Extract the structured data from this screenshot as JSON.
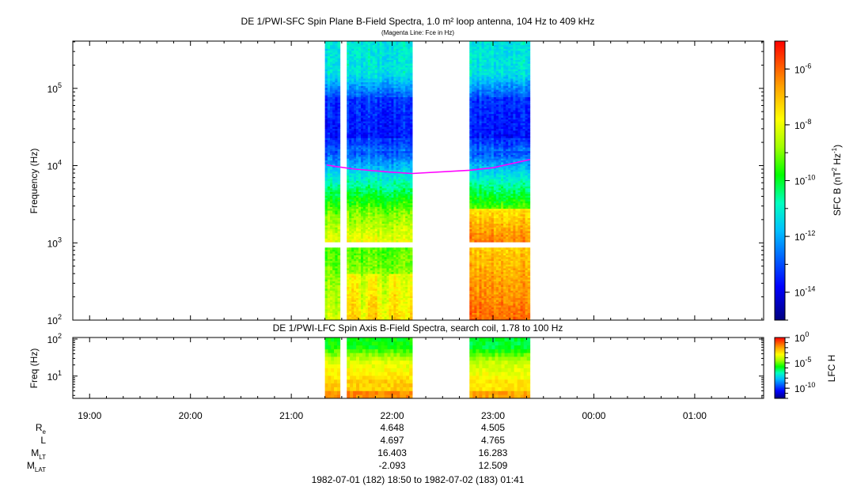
{
  "chart_data": [
    {
      "type": "heatmap",
      "title": "DE 1/PWI-SFC  Spin Plane B-Field Spectra, 1.0 m² loop antenna, 104 Hz to 409 kHz",
      "subtitle": "(Magenta Line: Fce in Hz)",
      "ylabel": "Frequency (Hz)",
      "y_scale": "log",
      "ylim": [
        100,
        409000
      ],
      "y_ticks": [
        {
          "value": 100,
          "base": "10",
          "exp": "2"
        },
        {
          "value": 1000,
          "base": "10",
          "exp": "3"
        },
        {
          "value": 10000,
          "base": "10",
          "exp": "4"
        },
        {
          "value": 100000,
          "base": "10",
          "exp": "5"
        }
      ],
      "colorbar": {
        "label_main": "SFC B (nT",
        "label_sup1": "2",
        "label_mid": " Hz",
        "label_sup2": "-1",
        "label_end": ")",
        "scale": "log",
        "range": [
          "1e-15",
          "1e-5"
        ],
        "ticks": [
          {
            "exp": "-6",
            "value": 1e-06
          },
          {
            "exp": "-8",
            "value": 1e-08
          },
          {
            "exp": "-10",
            "value": 1e-10
          },
          {
            "exp": "-12",
            "value": 1e-12
          },
          {
            "exp": "-14",
            "value": 1e-14
          }
        ]
      },
      "data_intervals": [
        {
          "start": "21:20",
          "end": "21:29"
        },
        {
          "start": "21:33",
          "end": "22:12"
        },
        {
          "start": "22:46",
          "end": "23:22"
        }
      ],
      "data_gap_freq_hz": [
        850,
        1000
      ],
      "fce_line": {
        "color": "#ff00ff",
        "points": [
          {
            "t": "21:21",
            "hz": 10200
          },
          {
            "t": "21:27",
            "hz": 9700
          },
          {
            "t": "21:38",
            "hz": 9000
          },
          {
            "t": "22:00",
            "hz": 8200
          },
          {
            "t": "22:12",
            "hz": 7900
          },
          {
            "t": "22:46",
            "hz": 8700
          },
          {
            "t": "23:00",
            "hz": 9400
          },
          {
            "t": "23:22",
            "hz": 12000
          }
        ]
      }
    },
    {
      "type": "heatmap",
      "title": "DE 1/PWI-LFC  Spin Axis B-Field Spectra, search coil, 1.78 to 100 Hz",
      "ylabel": "Freq (Hz)",
      "y_scale": "log",
      "ylim": [
        2.5,
        110
      ],
      "y_ticks": [
        {
          "value": 10,
          "base": "10",
          "exp": "1"
        },
        {
          "value": 100,
          "base": "10",
          "exp": "2"
        }
      ],
      "colorbar": {
        "label": "LFC H",
        "scale": "log",
        "range": [
          "1e-12",
          "1e0"
        ],
        "ticks": [
          {
            "exp": "0",
            "value": 1
          },
          {
            "exp": "-5",
            "value": 1e-05
          },
          {
            "exp": "-10",
            "value": 1e-10
          }
        ]
      },
      "data_intervals": [
        {
          "start": "21:20",
          "end": "21:29"
        },
        {
          "start": "21:33",
          "end": "22:12"
        },
        {
          "start": "22:46",
          "end": "23:22"
        }
      ]
    }
  ],
  "time_axis": {
    "start": "18:50",
    "end": "01:41",
    "ticks": [
      "19:00",
      "20:00",
      "21:00",
      "22:00",
      "23:00",
      "00:00",
      "01:00"
    ]
  },
  "ephemeris": {
    "rows": [
      {
        "label": "R",
        "sub": "e",
        "values": [
          "4.648",
          "4.505"
        ]
      },
      {
        "label": "L",
        "sub": "",
        "values": [
          "4.697",
          "4.765"
        ]
      },
      {
        "label": "M",
        "sub": "LT",
        "values": [
          "16.403",
          "16.283"
        ]
      },
      {
        "label": "M",
        "sub": "LAT",
        "values": [
          "-2.093",
          "12.509"
        ]
      }
    ],
    "value_times": [
      "22:00",
      "23:00"
    ]
  },
  "footer": "1982-07-01 (182) 18:50 to 1982-07-02 (183) 01:41"
}
